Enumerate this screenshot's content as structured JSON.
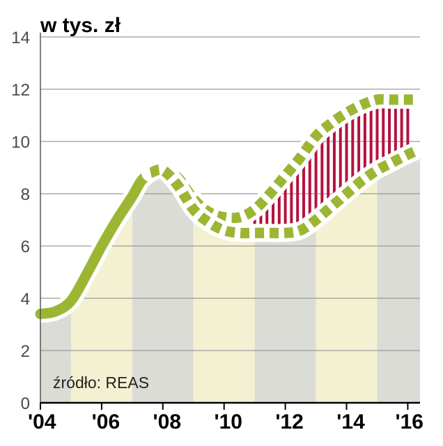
{
  "chart_data": {
    "type": "line",
    "unit_label": "w tys. zł",
    "source": "źródło: REAS",
    "x_ticks": [
      "'04",
      "'06",
      "'08",
      "'10",
      "'12",
      "'14",
      "'16"
    ],
    "x_range": [
      2004,
      2016.4
    ],
    "y_ticks": [
      "0",
      "2",
      "4",
      "6",
      "8",
      "10",
      "12",
      "14"
    ],
    "ylim": [
      0,
      14
    ],
    "grid": true,
    "series": [
      {
        "style": "solid",
        "x": [
          2004.0,
          2004.5,
          2005.0,
          2005.5,
          2006.0,
          2006.5,
          2007.0,
          2007.3,
          2007.6
        ],
        "y": [
          3.4,
          3.5,
          3.9,
          4.9,
          6.0,
          7.0,
          7.9,
          8.5,
          8.8
        ]
      },
      {
        "style": "dotted",
        "x": [
          2007.6,
          2008.0,
          2008.5,
          2009.0,
          2009.5,
          2010.0,
          2010.5,
          2011.0,
          2011.5,
          2012.0,
          2012.5,
          2013.0,
          2013.5,
          2014.0,
          2014.5,
          2015.0,
          2015.5,
          2016.0,
          2016.2
        ],
        "y": [
          8.8,
          9.0,
          8.6,
          7.8,
          7.3,
          7.1,
          7.1,
          7.4,
          8.0,
          8.7,
          9.4,
          10.2,
          10.7,
          11.1,
          11.4,
          11.6,
          11.6,
          11.6,
          11.6
        ]
      },
      {
        "style": "dotted",
        "x": [
          2007.6,
          2008.0,
          2008.5,
          2009.0,
          2009.5,
          2010.0,
          2010.5,
          2011.0,
          2011.5,
          2012.0,
          2012.5,
          2013.0,
          2013.5,
          2014.0,
          2014.5,
          2015.0,
          2015.5,
          2016.0,
          2016.2
        ],
        "y": [
          8.8,
          8.9,
          8.3,
          7.4,
          6.9,
          6.6,
          6.5,
          6.5,
          6.5,
          6.5,
          6.6,
          7.0,
          7.5,
          8.0,
          8.5,
          8.9,
          9.2,
          9.5,
          9.6
        ]
      }
    ],
    "colors": {
      "line": "#9cb634",
      "gap_hatch": "#b5123e",
      "band_gray": "#dcdcd6",
      "band_cream": "#f4f1d2",
      "grid": "#9a9a9a"
    }
  }
}
